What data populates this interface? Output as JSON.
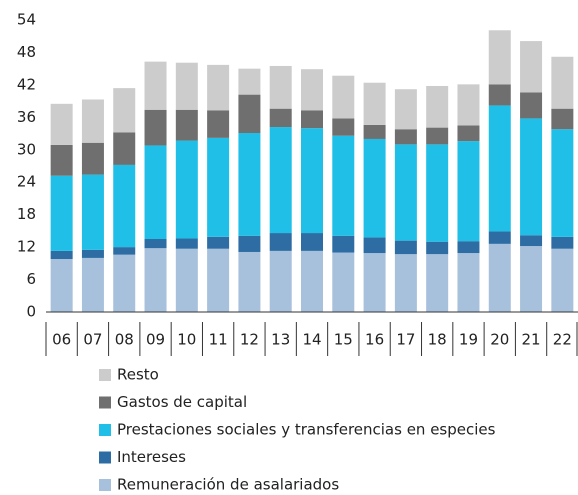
{
  "chart_data": {
    "type": "stacked_bar",
    "categories": [
      "06",
      "07",
      "08",
      "09",
      "10",
      "11",
      "12",
      "13",
      "14",
      "15",
      "16",
      "17",
      "18",
      "19",
      "20",
      "21",
      "22"
    ],
    "series": [
      {
        "name": "Remuneración de asalariados",
        "color": "#a7c0dc",
        "values": [
          9.8,
          10.0,
          10.6,
          11.8,
          11.7,
          11.7,
          11.1,
          11.3,
          11.3,
          11.0,
          10.9,
          10.7,
          10.7,
          10.9,
          12.6,
          12.2,
          11.7
        ]
      },
      {
        "name": "Intereses",
        "color": "#2e6da4",
        "values": [
          1.5,
          1.5,
          1.4,
          1.7,
          1.9,
          2.2,
          3.0,
          3.3,
          3.3,
          3.1,
          2.9,
          2.5,
          2.3,
          2.2,
          2.3,
          2.0,
          2.2
        ]
      },
      {
        "name": "Prestaciones sociales y transferencias en especies",
        "color": "#1fbfe8",
        "values": [
          13.9,
          13.9,
          15.2,
          17.3,
          18.1,
          18.3,
          19.0,
          19.6,
          19.4,
          18.5,
          18.2,
          17.8,
          18.0,
          18.5,
          23.3,
          21.6,
          19.9
        ]
      },
      {
        "name": "Gastos de capital",
        "color": "#6f6f6f",
        "values": [
          5.7,
          5.9,
          6.0,
          6.6,
          5.7,
          5.1,
          7.1,
          3.4,
          3.3,
          3.2,
          2.6,
          2.8,
          3.1,
          2.9,
          3.9,
          4.8,
          3.8
        ]
      },
      {
        "name": "Resto",
        "color": "#cccccc",
        "values": [
          7.6,
          8.0,
          8.2,
          8.9,
          8.7,
          8.4,
          4.8,
          7.9,
          7.6,
          7.9,
          7.8,
          7.4,
          7.7,
          7.6,
          10.0,
          9.5,
          9.6
        ]
      }
    ],
    "ylim": [
      0,
      54
    ],
    "yticks": [
      0,
      6,
      12,
      18,
      24,
      30,
      36,
      42,
      48,
      54
    ],
    "grid": false
  }
}
